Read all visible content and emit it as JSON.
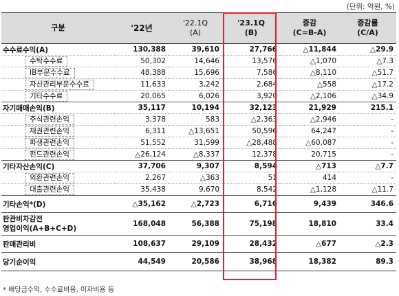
{
  "unit_note": "(단위: 억원, %)",
  "headers": {
    "category": "구분",
    "y22": "'22년",
    "q22_line1": "'22.1Q",
    "q22_line2": "(A)",
    "q23_line1": "'23.1Q",
    "q23_line2": "(B)",
    "diff_line1": "증감",
    "diff_line2": "(C=B-A)",
    "rate_line1": "증감률",
    "rate_line2": "(C/A)"
  },
  "rows": [
    {
      "type": "main",
      "label": "수수료수익(A)",
      "y22": "130,388",
      "q22": "39,610",
      "q23": "27,766",
      "diff": "△11,844",
      "rate": "△29.9"
    },
    {
      "type": "sub",
      "label": "수탁수수료",
      "y22": "50,302",
      "q22": "14,646",
      "q23": "13,576",
      "diff": "△1,070",
      "rate": "△7.3"
    },
    {
      "type": "sub",
      "label": "IB부문수수료",
      "y22": "48,388",
      "q22": "15,696",
      "q23": "7,586",
      "diff": "△8,110",
      "rate": "△51.7"
    },
    {
      "type": "sub",
      "label": "자산관리부문수수료",
      "y22": "11,633",
      "q22": "3,242",
      "q23": "2,684",
      "diff": "△558",
      "rate": "△17.2"
    },
    {
      "type": "sub",
      "label": "기타수수료",
      "y22": "20,065",
      "q22": "6,026",
      "q23": "3,920",
      "diff": "△2,106",
      "rate": "△34.9"
    },
    {
      "type": "main",
      "label": "자기매매손익(B)",
      "y22": "35,117",
      "q22": "10,194",
      "q23": "32,123",
      "diff": "21,929",
      "rate": "215.1"
    },
    {
      "type": "sub",
      "label": "주식관련손익",
      "y22": "3,378",
      "q22": "583",
      "q23": "△2,363",
      "diff": "△2,946",
      "rate": "-"
    },
    {
      "type": "sub",
      "label": "채권관련손익",
      "y22": "6,311",
      "q22": "△13,651",
      "q23": "50,596",
      "diff": "64,247",
      "rate": "-"
    },
    {
      "type": "sub",
      "label": "파생관련손익",
      "y22": "51,552",
      "q22": "31,599",
      "q23": "△28,488",
      "diff": "△60,087",
      "rate": "-"
    },
    {
      "type": "sub",
      "label": "펀드관련손익",
      "y22": "△26,124",
      "q22": "△8,337",
      "q23": "12,378",
      "diff": "20,715",
      "rate": "-"
    },
    {
      "type": "main",
      "label": "기타자산손익(C)",
      "y22": "37,706",
      "q22": "9,307",
      "q23": "8,594",
      "diff": "△713",
      "rate": "△7.7"
    },
    {
      "type": "sub",
      "label": "외환관련손익",
      "y22": "2,267",
      "q22": "△363",
      "q23": "51",
      "diff": "414",
      "rate": "-"
    },
    {
      "type": "sub",
      "label": "대출관련손익",
      "y22": "35,438",
      "q22": "9,670",
      "q23": "8,542",
      "diff": "△1,128",
      "rate": "△11.7"
    },
    {
      "type": "main-mid",
      "label": "기타손익*(D)",
      "y22": "△35,162",
      "q22": "△2,723",
      "q23": "6,716",
      "diff": "9,439",
      "rate": "346.6"
    },
    {
      "type": "main-tall",
      "label": "판관비차감전",
      "label2": "영업이익(A+B+C+D)",
      "y22": "168,048",
      "q22": "56,388",
      "q23": "75,198",
      "diff": "18,810",
      "rate": "33.4"
    },
    {
      "type": "main-mid",
      "label": "판매관리비",
      "y22": "108,637",
      "q22": "29,109",
      "q23": "28,432",
      "diff": "△677",
      "rate": "△2.3"
    },
    {
      "type": "main-last",
      "label": "당기순이익",
      "y22": "44,549",
      "q22": "20,586",
      "q23": "38,968",
      "diff": "18,382",
      "rate": "89.3"
    }
  ],
  "footnote": "* 배당금수익, 수수료비용, 이자비용 등",
  "highlight_color": "#e0202a"
}
